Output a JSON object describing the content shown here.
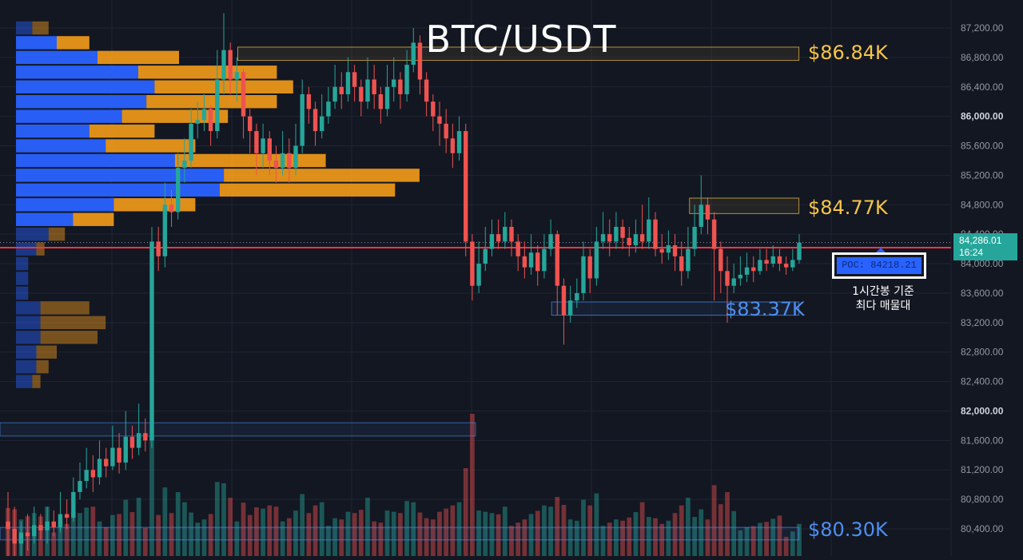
{
  "title": "BTC/USDT",
  "colors": {
    "background": "#131722",
    "grid": "#1f2433",
    "up": "#26a69a",
    "down": "#ef5350",
    "poc_line": "#f23645",
    "resistance": "#f7c548",
    "support": "#4d8ff0",
    "vp_buy": "#2962ff",
    "vp_sell": "#f59c1a"
  },
  "chart_data": {
    "type": "candlestick",
    "title": "BTC/USDT",
    "ylim": [
      80000,
      87400
    ],
    "grid": true,
    "y_ticks": [
      "87,200.00",
      "86,800.00",
      "86,400.00",
      "86,000.00",
      "85,600.00",
      "85,200.00",
      "84,800.00",
      "84,400.00",
      "84,000.00",
      "83,600.00",
      "83,200.00",
      "82,800.00",
      "82,400.00",
      "82,000.00",
      "81,600.00",
      "81,200.00",
      "80,800.00",
      "80,400.00"
    ],
    "bold_ticks": [
      "86,000.00",
      "82,000.00"
    ],
    "current_price": {
      "value": 84286.01,
      "label": "84,286.01",
      "countdown": "16:24"
    },
    "poc": {
      "value": 84218.21,
      "label": "POC: 84218.21",
      "note_line1": "1시간봉 기준",
      "note_line2": "최다 매물대"
    },
    "levels": [
      {
        "value": 86840,
        "label": "$86.84K",
        "kind": "resistance",
        "band": [
          86760,
          86940
        ],
        "x_from": 0.25,
        "x_to": 0.84
      },
      {
        "value": 84770,
        "label": "$84.77K",
        "kind": "resistance",
        "band": [
          84680,
          84890
        ],
        "x_from": 0.725,
        "x_to": 0.84
      },
      {
        "value": 83370,
        "label": "$83.37K",
        "kind": "support",
        "band": [
          83300,
          83480
        ],
        "x_from": 0.58,
        "x_to": 0.84
      },
      {
        "value": 80300,
        "label": "$80.30K",
        "kind": "support",
        "band": [
          80250,
          80420
        ],
        "x_from": 0.0,
        "x_to": 0.84
      }
    ],
    "extra_zones": [
      {
        "band": [
          81660,
          81840
        ],
        "x_from": 0.0,
        "x_to": 0.5
      }
    ],
    "candles": [
      [
        80500,
        80400,
        80900,
        80000
      ],
      [
        80400,
        80200,
        80700,
        79900
      ],
      [
        80200,
        80350,
        80500,
        80000
      ],
      [
        80350,
        80300,
        80600,
        80100
      ],
      [
        80300,
        80450,
        80700,
        80200
      ],
      [
        80450,
        80380,
        80600,
        80250
      ],
      [
        80380,
        80500,
        80700,
        80200
      ],
      [
        80500,
        80420,
        80650,
        80300
      ],
      [
        80420,
        80600,
        80900,
        80350
      ],
      [
        80600,
        80550,
        80800,
        80400
      ],
      [
        80550,
        80900,
        81100,
        80500
      ],
      [
        80900,
        81050,
        81300,
        80800
      ],
      [
        81050,
        81200,
        81500,
        80950
      ],
      [
        81200,
        81100,
        81400,
        80900
      ],
      [
        81100,
        81350,
        81600,
        81000
      ],
      [
        81350,
        81250,
        81500,
        81100
      ],
      [
        81250,
        81500,
        81800,
        81200
      ],
      [
        81500,
        81300,
        81700,
        81150
      ],
      [
        81300,
        81650,
        82000,
        81200
      ],
      [
        81650,
        81500,
        81800,
        81350
      ],
      [
        81500,
        81700,
        82100,
        81400
      ],
      [
        81700,
        81600,
        81900,
        81450
      ],
      [
        81600,
        84300,
        84500,
        81500
      ],
      [
        84300,
        84100,
        84500,
        83900
      ],
      [
        84100,
        84800,
        85100,
        83950
      ],
      [
        84800,
        84700,
        85000,
        84500
      ],
      [
        84700,
        85300,
        85500,
        84600
      ],
      [
        85300,
        85400,
        85700,
        85100
      ],
      [
        85400,
        85900,
        86100,
        85300
      ],
      [
        85900,
        85950,
        86200,
        85700
      ],
      [
        85950,
        86100,
        86300,
        85800
      ],
      [
        86100,
        85800,
        86150,
        85600
      ],
      [
        85800,
        86500,
        86900,
        85700
      ],
      [
        86500,
        86900,
        87400,
        86300
      ],
      [
        86900,
        86500,
        87000,
        86300
      ],
      [
        86500,
        86600,
        86800,
        86200
      ],
      [
        86600,
        86000,
        86650,
        85700
      ],
      [
        86000,
        85800,
        86100,
        85500
      ],
      [
        85800,
        85500,
        85900,
        85200
      ],
      [
        85500,
        85700,
        85900,
        85300
      ],
      [
        85700,
        85400,
        85800,
        85200
      ],
      [
        85400,
        85300,
        85600,
        85100
      ],
      [
        85300,
        85500,
        85800,
        85200
      ],
      [
        85500,
        85300,
        85700,
        85100
      ],
      [
        85300,
        85600,
        85900,
        85200
      ],
      [
        85600,
        86300,
        86500,
        85500
      ],
      [
        86300,
        86100,
        86400,
        85900
      ],
      [
        86100,
        85800,
        86200,
        85600
      ],
      [
        85800,
        86000,
        86300,
        85700
      ],
      [
        86000,
        86200,
        86400,
        85900
      ],
      [
        86200,
        86400,
        86700,
        86100
      ],
      [
        86400,
        86300,
        86600,
        86100
      ],
      [
        86300,
        86600,
        86800,
        86200
      ],
      [
        86600,
        86400,
        86700,
        86200
      ],
      [
        86400,
        86200,
        86500,
        86000
      ],
      [
        86200,
        86500,
        86800,
        86100
      ],
      [
        86500,
        86300,
        86700,
        86100
      ],
      [
        86300,
        86100,
        86400,
        85900
      ],
      [
        86100,
        86400,
        86700,
        86000
      ],
      [
        86400,
        86500,
        86800,
        86200
      ],
      [
        86500,
        86300,
        86600,
        86100
      ],
      [
        86300,
        86700,
        86900,
        86200
      ],
      [
        86700,
        87000,
        87200,
        86600
      ],
      [
        87000,
        86500,
        87100,
        86300
      ],
      [
        86500,
        86200,
        86600,
        86000
      ],
      [
        86200,
        86000,
        86300,
        85800
      ],
      [
        86000,
        85900,
        86200,
        85600
      ],
      [
        85900,
        85700,
        86100,
        85500
      ],
      [
        85700,
        85500,
        85900,
        85300
      ],
      [
        85500,
        85800,
        86000,
        85400
      ],
      [
        85800,
        84300,
        85900,
        84100
      ],
      [
        84300,
        83700,
        84400,
        83500
      ],
      [
        83700,
        84000,
        84300,
        83600
      ],
      [
        84000,
        84200,
        84500,
        83900
      ],
      [
        84200,
        84400,
        84600,
        84100
      ],
      [
        84400,
        84300,
        84600,
        84200
      ],
      [
        84300,
        84500,
        84700,
        84200
      ],
      [
        84500,
        84300,
        84600,
        84100
      ],
      [
        84300,
        84100,
        84400,
        83900
      ],
      [
        84100,
        83950,
        84300,
        83800
      ],
      [
        83950,
        84150,
        84400,
        83850
      ],
      [
        84150,
        83900,
        84250,
        83700
      ],
      [
        83900,
        84200,
        84400,
        83800
      ],
      [
        84200,
        84400,
        84600,
        84100
      ],
      [
        84400,
        83700,
        84450,
        83300
      ],
      [
        83700,
        83300,
        83800,
        82900
      ],
      [
        83300,
        83500,
        83700,
        83200
      ],
      [
        83500,
        83600,
        83800,
        83400
      ],
      [
        83600,
        84100,
        84300,
        83500
      ],
      [
        84100,
        83800,
        84200,
        83600
      ],
      [
        83800,
        84300,
        84500,
        83700
      ],
      [
        84300,
        84400,
        84700,
        84200
      ],
      [
        84400,
        84300,
        84600,
        84100
      ],
      [
        84300,
        84500,
        84700,
        84200
      ],
      [
        84500,
        84350,
        84600,
        84200
      ],
      [
        84350,
        84250,
        84500,
        84100
      ],
      [
        84250,
        84400,
        84600,
        84150
      ],
      [
        84400,
        84300,
        84800,
        84200
      ],
      [
        84300,
        84600,
        84900,
        84200
      ],
      [
        84600,
        84200,
        84700,
        84100
      ],
      [
        84200,
        84150,
        84400,
        84000
      ],
      [
        84150,
        84250,
        84450,
        84050
      ],
      [
        84250,
        84100,
        84400,
        83900
      ],
      [
        84100,
        83900,
        84300,
        83700
      ],
      [
        83900,
        84200,
        84500,
        83800
      ],
      [
        84200,
        84500,
        84800,
        84100
      ],
      [
        84500,
        84800,
        85200,
        84400
      ],
      [
        84800,
        84600,
        84900,
        84400
      ],
      [
        84600,
        84200,
        84700,
        83500
      ],
      [
        84200,
        83900,
        84300,
        83600
      ],
      [
        83900,
        83700,
        84100,
        83200
      ],
      [
        83700,
        83800,
        84000,
        83600
      ],
      [
        83800,
        83850,
        84100,
        83700
      ],
      [
        83850,
        83950,
        84150,
        83750
      ],
      [
        83950,
        83900,
        84100,
        83750
      ],
      [
        83900,
        84050,
        84200,
        83850
      ],
      [
        84050,
        84000,
        84200,
        83900
      ],
      [
        84000,
        84100,
        84250,
        83950
      ],
      [
        84100,
        84000,
        84200,
        83900
      ],
      [
        84000,
        83950,
        84100,
        83850
      ],
      [
        83950,
        84050,
        84200,
        83900
      ],
      [
        84050,
        84286,
        84400,
        84000
      ]
    ],
    "volume_profile": [
      {
        "price": 87200,
        "buy": 4,
        "sell": 4
      },
      {
        "price": 87000,
        "buy": 10,
        "sell": 8
      },
      {
        "price": 86800,
        "buy": 20,
        "sell": 20
      },
      {
        "price": 86600,
        "buy": 30,
        "sell": 34
      },
      {
        "price": 86400,
        "buy": 34,
        "sell": 34
      },
      {
        "price": 86200,
        "buy": 32,
        "sell": 32
      },
      {
        "price": 86000,
        "buy": 26,
        "sell": 26
      },
      {
        "price": 85800,
        "buy": 18,
        "sell": 16
      },
      {
        "price": 85600,
        "buy": 22,
        "sell": 22
      },
      {
        "price": 85400,
        "buy": 39,
        "sell": 37
      },
      {
        "price": 85200,
        "buy": 51,
        "sell": 48
      },
      {
        "price": 85000,
        "buy": 50,
        "sell": 43
      },
      {
        "price": 84800,
        "buy": 24,
        "sell": 20
      },
      {
        "price": 84600,
        "buy": 14,
        "sell": 10
      },
      {
        "price": 84400,
        "buy": 8,
        "sell": 4
      },
      {
        "price": 84200,
        "buy": 5,
        "sell": 2
      },
      {
        "price": 84000,
        "buy": 3,
        "sell": 0
      },
      {
        "price": 83800,
        "buy": 3,
        "sell": 0
      },
      {
        "price": 83600,
        "buy": 3,
        "sell": 0
      },
      {
        "price": 83400,
        "buy": 6,
        "sell": 12
      },
      {
        "price": 83200,
        "buy": 6,
        "sell": 16
      },
      {
        "price": 83000,
        "buy": 6,
        "sell": 14
      },
      {
        "price": 82800,
        "buy": 5,
        "sell": 5
      },
      {
        "price": 82600,
        "buy": 5,
        "sell": 3
      },
      {
        "price": 82400,
        "buy": 4,
        "sell": 2
      }
    ]
  }
}
